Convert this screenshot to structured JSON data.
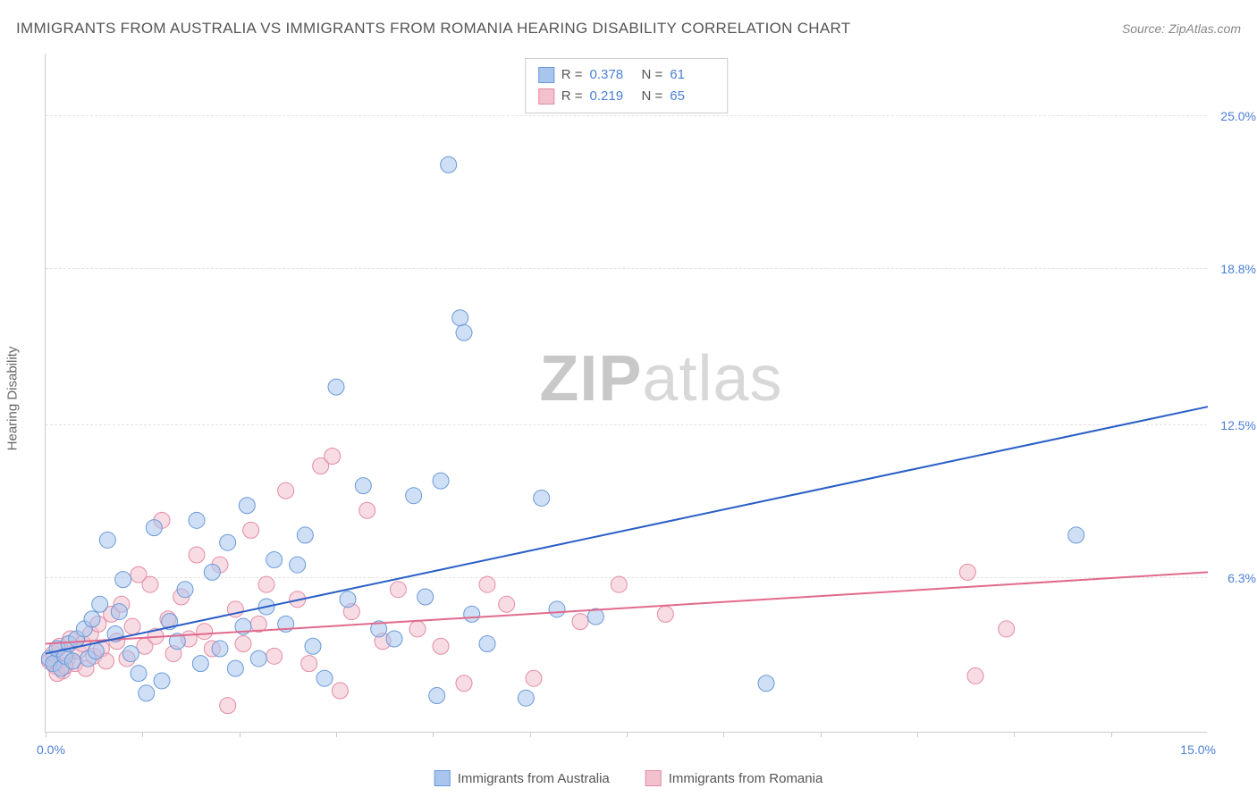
{
  "title": "IMMIGRANTS FROM AUSTRALIA VS IMMIGRANTS FROM ROMANIA HEARING DISABILITY CORRELATION CHART",
  "source": "Source: ZipAtlas.com",
  "watermark": {
    "bold": "ZIP",
    "rest": "atlas"
  },
  "yaxis_title": "Hearing Disability",
  "chart": {
    "type": "scatter-with-regression",
    "background_color": "#ffffff",
    "grid_color": "#e2e2e2",
    "axis_color": "#cccccc",
    "xlim": [
      0,
      15.0
    ],
    "ylim": [
      0,
      27.5
    ],
    "x_labels": {
      "min": "0.0%",
      "max": "15.0%"
    },
    "x_ticks": [
      0,
      1.25,
      2.5,
      3.75,
      5.0,
      6.25,
      7.5,
      8.75,
      10.0,
      11.25,
      12.5,
      13.75
    ],
    "y_ticks": [
      {
        "value": 6.3,
        "label": "6.3%"
      },
      {
        "value": 12.5,
        "label": "12.5%"
      },
      {
        "value": 18.8,
        "label": "18.8%"
      },
      {
        "value": 25.0,
        "label": "25.0%"
      }
    ],
    "point_radius": 9,
    "point_opacity": 0.55,
    "line_width": 2,
    "series": [
      {
        "name": "Immigrants from Australia",
        "fill_color": "#a8c5ed",
        "stroke_color": "#6a9ad8",
        "line_color": "#2a5fc7",
        "R": "0.378",
        "N": "61",
        "regression": {
          "x1": 0,
          "y1": 3.2,
          "x2": 15.0,
          "y2": 13.2
        },
        "points": [
          [
            0.05,
            3.0
          ],
          [
            0.1,
            2.8
          ],
          [
            0.15,
            3.4
          ],
          [
            0.2,
            2.6
          ],
          [
            0.25,
            3.1
          ],
          [
            0.3,
            3.6
          ],
          [
            0.35,
            2.9
          ],
          [
            0.4,
            3.8
          ],
          [
            0.5,
            4.2
          ],
          [
            0.55,
            3.0
          ],
          [
            0.6,
            4.6
          ],
          [
            0.65,
            3.3
          ],
          [
            0.7,
            5.2
          ],
          [
            0.8,
            7.8
          ],
          [
            0.9,
            4.0
          ],
          [
            0.95,
            4.9
          ],
          [
            1.0,
            6.2
          ],
          [
            1.1,
            3.2
          ],
          [
            1.2,
            2.4
          ],
          [
            1.3,
            1.6
          ],
          [
            1.4,
            8.3
          ],
          [
            1.5,
            2.1
          ],
          [
            1.6,
            4.5
          ],
          [
            1.7,
            3.7
          ],
          [
            1.8,
            5.8
          ],
          [
            1.95,
            8.6
          ],
          [
            2.0,
            2.8
          ],
          [
            2.15,
            6.5
          ],
          [
            2.25,
            3.4
          ],
          [
            2.35,
            7.7
          ],
          [
            2.45,
            2.6
          ],
          [
            2.55,
            4.3
          ],
          [
            2.6,
            9.2
          ],
          [
            2.75,
            3.0
          ],
          [
            2.85,
            5.1
          ],
          [
            2.95,
            7.0
          ],
          [
            3.1,
            4.4
          ],
          [
            3.25,
            6.8
          ],
          [
            3.35,
            8.0
          ],
          [
            3.45,
            3.5
          ],
          [
            3.6,
            2.2
          ],
          [
            3.75,
            14.0
          ],
          [
            3.9,
            5.4
          ],
          [
            4.1,
            10.0
          ],
          [
            4.3,
            4.2
          ],
          [
            4.5,
            3.8
          ],
          [
            4.75,
            9.6
          ],
          [
            4.9,
            5.5
          ],
          [
            5.05,
            1.5
          ],
          [
            5.1,
            10.2
          ],
          [
            5.2,
            23.0
          ],
          [
            5.35,
            16.8
          ],
          [
            5.4,
            16.2
          ],
          [
            5.5,
            4.8
          ],
          [
            5.7,
            3.6
          ],
          [
            6.2,
            1.4
          ],
          [
            6.4,
            9.5
          ],
          [
            6.6,
            5.0
          ],
          [
            7.1,
            4.7
          ],
          [
            9.3,
            2.0
          ],
          [
            13.3,
            8.0
          ]
        ]
      },
      {
        "name": "Immigrants from Romania",
        "fill_color": "#f3c0cd",
        "stroke_color": "#e48ba3",
        "line_color": "#e16a8c",
        "R": "0.219",
        "N": "65",
        "regression": {
          "x1": 0,
          "y1": 3.6,
          "x2": 15.0,
          "y2": 6.5
        },
        "points": [
          [
            0.05,
            2.9
          ],
          [
            0.1,
            3.2
          ],
          [
            0.12,
            2.7
          ],
          [
            0.18,
            3.5
          ],
          [
            0.22,
            2.5
          ],
          [
            0.28,
            3.0
          ],
          [
            0.32,
            3.8
          ],
          [
            0.38,
            2.8
          ],
          [
            0.42,
            3.3
          ],
          [
            0.48,
            3.6
          ],
          [
            0.52,
            2.6
          ],
          [
            0.58,
            4.0
          ],
          [
            0.62,
            3.1
          ],
          [
            0.68,
            4.4
          ],
          [
            0.72,
            3.4
          ],
          [
            0.78,
            2.9
          ],
          [
            0.85,
            4.8
          ],
          [
            0.92,
            3.7
          ],
          [
            0.98,
            5.2
          ],
          [
            1.05,
            3.0
          ],
          [
            1.12,
            4.3
          ],
          [
            1.2,
            6.4
          ],
          [
            1.28,
            3.5
          ],
          [
            1.35,
            6.0
          ],
          [
            1.42,
            3.9
          ],
          [
            1.5,
            8.6
          ],
          [
            1.58,
            4.6
          ],
          [
            1.65,
            3.2
          ],
          [
            1.75,
            5.5
          ],
          [
            1.85,
            3.8
          ],
          [
            1.95,
            7.2
          ],
          [
            2.05,
            4.1
          ],
          [
            2.15,
            3.4
          ],
          [
            2.25,
            6.8
          ],
          [
            2.35,
            1.1
          ],
          [
            2.45,
            5.0
          ],
          [
            2.55,
            3.6
          ],
          [
            2.65,
            8.2
          ],
          [
            2.75,
            4.4
          ],
          [
            2.85,
            6.0
          ],
          [
            2.95,
            3.1
          ],
          [
            3.1,
            9.8
          ],
          [
            3.25,
            5.4
          ],
          [
            3.4,
            2.8
          ],
          [
            3.55,
            10.8
          ],
          [
            3.7,
            11.2
          ],
          [
            3.8,
            1.7
          ],
          [
            3.95,
            4.9
          ],
          [
            4.15,
            9.0
          ],
          [
            4.35,
            3.7
          ],
          [
            4.55,
            5.8
          ],
          [
            4.8,
            4.2
          ],
          [
            5.1,
            3.5
          ],
          [
            5.4,
            2.0
          ],
          [
            5.7,
            6.0
          ],
          [
            5.95,
            5.2
          ],
          [
            6.3,
            2.2
          ],
          [
            6.9,
            4.5
          ],
          [
            7.4,
            6.0
          ],
          [
            8.0,
            4.8
          ],
          [
            11.9,
            6.5
          ],
          [
            12.0,
            2.3
          ],
          [
            12.4,
            4.2
          ],
          [
            0.15,
            2.4
          ],
          [
            0.25,
            2.7
          ]
        ]
      }
    ]
  },
  "legend": {
    "series1_label": "Immigrants from Australia",
    "series2_label": "Immigrants from Romania"
  },
  "stat_box": {
    "r_label": "R =",
    "n_label": "N ="
  }
}
